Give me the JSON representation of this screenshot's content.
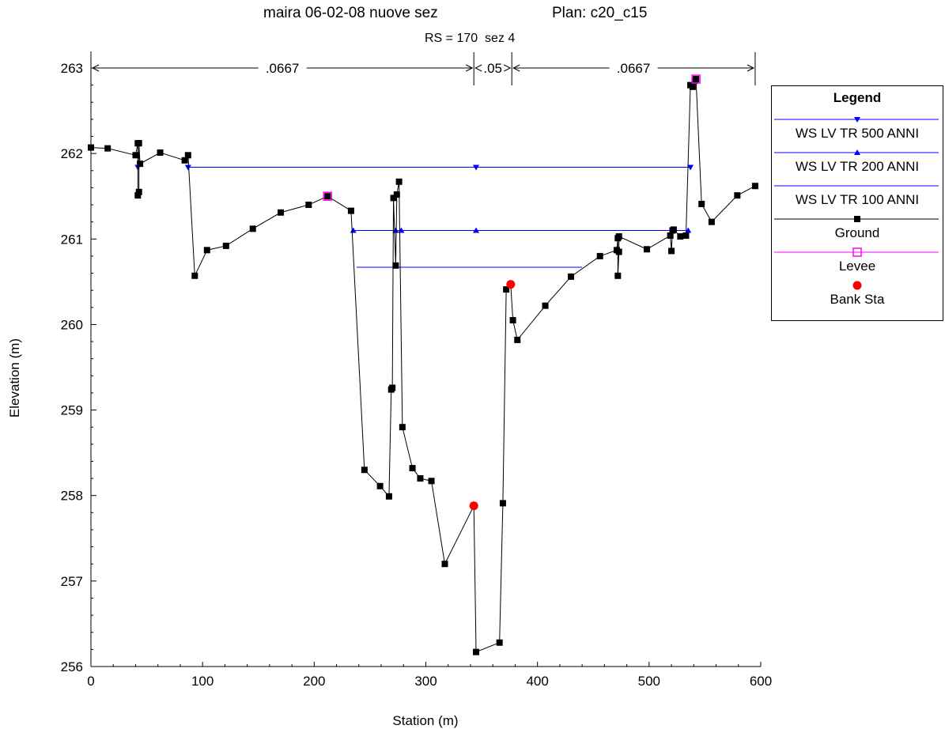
{
  "header": {
    "title_left": "maira 06-02-08 nuove sez",
    "title_right": "Plan: c20_c15",
    "subtitle": "RS = 170  sez 4"
  },
  "chart_data": {
    "type": "line",
    "xlabel": "Station (m)",
    "ylabel": "Elevation (m)",
    "xlim": [
      0,
      600
    ],
    "ylim": [
      256,
      263
    ],
    "xticks": [
      0,
      100,
      200,
      300,
      400,
      500,
      600
    ],
    "yticks": [
      256,
      257,
      258,
      259,
      260,
      261,
      262,
      263
    ],
    "grid": false,
    "legend_placement": "right",
    "legend_title": "Legend",
    "manning_n": [
      {
        "label": ".0667",
        "from": 0,
        "to": 343
      },
      {
        "label": ".05",
        "from": 343,
        "to": 377
      },
      {
        "label": ".0667",
        "from": 377,
        "to": 595
      }
    ],
    "series": [
      {
        "name": "WS LV TR 500 ANNI",
        "color": "#0000ff",
        "marker": "triangle-down",
        "x": [
          42,
          87,
          345,
          537
        ],
        "y": [
          261.84,
          261.84,
          261.84,
          261.84
        ],
        "segments": [
          [
            42,
            42
          ],
          [
            87,
            537
          ]
        ]
      },
      {
        "name": "WS LV TR 200 ANNI",
        "color": "#0000ff",
        "marker": "triangle-up",
        "x": [
          235,
          273,
          278,
          345,
          521,
          535
        ],
        "y": [
          261.1,
          261.1,
          261.1,
          261.1,
          261.1,
          261.1
        ],
        "segments": [
          [
            235,
            535
          ]
        ]
      },
      {
        "name": "WS LV TR 100 ANNI",
        "color": "#0000ff",
        "marker": "none",
        "x": [
          238,
          440
        ],
        "y": [
          260.67,
          260.67
        ],
        "segments": [
          [
            238,
            440
          ]
        ]
      },
      {
        "name": "Ground",
        "color": "#000000",
        "marker": "square",
        "x": [
          0,
          15,
          40,
          42,
          42,
          43,
          43,
          44,
          62,
          84,
          87,
          93,
          104,
          121,
          145,
          170,
          195,
          212,
          233,
          245,
          259,
          267,
          269,
          270,
          271,
          273,
          274,
          276,
          279,
          288,
          295,
          305,
          317,
          343,
          345,
          366,
          369,
          372,
          376,
          378,
          382,
          407,
          430,
          456,
          471,
          472,
          472,
          473,
          473,
          498,
          519,
          520,
          521,
          522,
          528,
          533,
          537,
          539,
          541,
          542,
          547,
          556,
          579,
          595
        ],
        "y": [
          262.07,
          262.06,
          261.98,
          262.12,
          261.51,
          261.55,
          262.12,
          261.88,
          262.01,
          261.92,
          261.98,
          260.57,
          260.87,
          260.92,
          261.12,
          261.31,
          261.4,
          261.5,
          261.33,
          258.3,
          258.11,
          257.99,
          259.24,
          259.26,
          261.48,
          260.69,
          261.52,
          261.67,
          258.8,
          258.32,
          258.2,
          258.17,
          257.2,
          257.88,
          256.17,
          256.28,
          257.91,
          260.41,
          260.47,
          260.05,
          259.82,
          260.22,
          260.56,
          260.8,
          260.87,
          261.01,
          260.57,
          260.85,
          261.03,
          260.88,
          261.04,
          260.86,
          261.1,
          261.11,
          261.03,
          261.04,
          262.8,
          262.78,
          262.85,
          262.87,
          261.41,
          261.2,
          261.51,
          261.62
        ]
      },
      {
        "name": "Levee",
        "color": "#ff00ff",
        "marker": "open-square",
        "x": [
          212,
          542
        ],
        "y": [
          261.5,
          262.87
        ]
      },
      {
        "name": "Bank Sta",
        "color": "#ff0000",
        "marker": "circle",
        "x": [
          343,
          376
        ],
        "y": [
          257.88,
          260.47
        ]
      }
    ]
  }
}
